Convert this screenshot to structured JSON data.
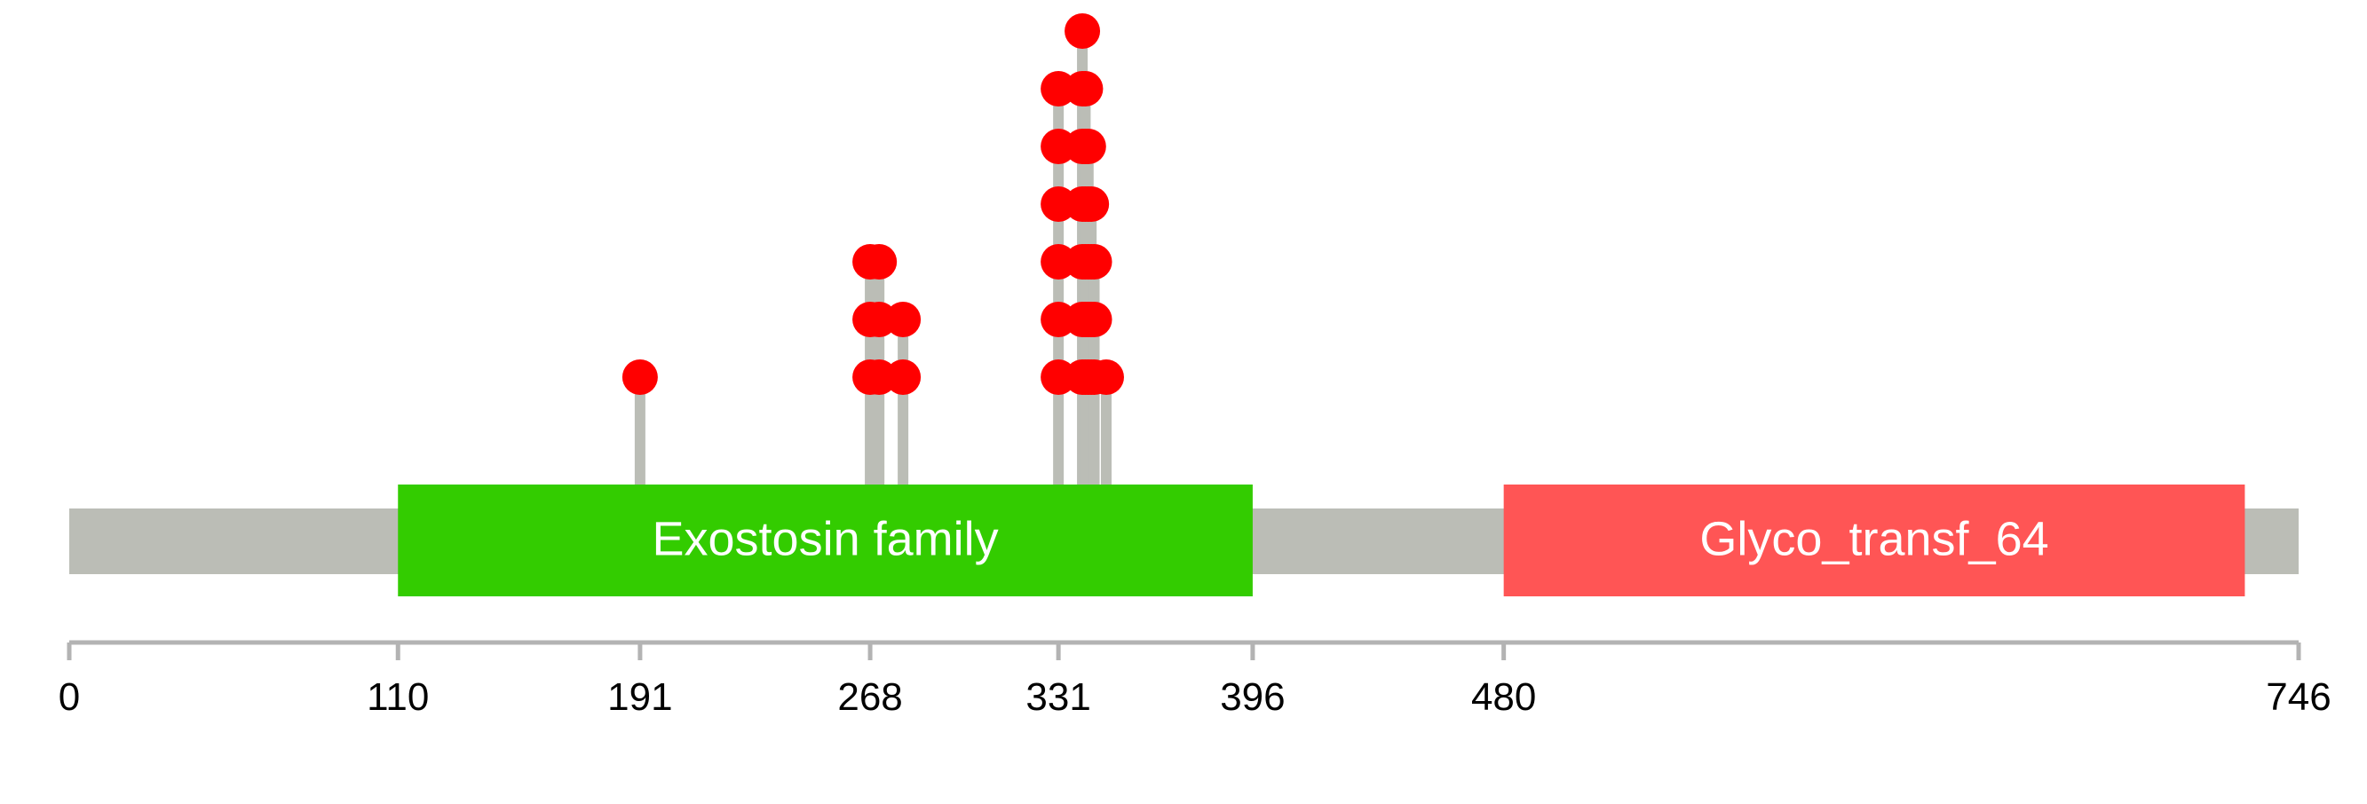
{
  "protein_length": 746,
  "colors": {
    "backbone": "#bbbdb6",
    "stem": "#bbbdb6",
    "mutation": "#ff0000",
    "axis": "#b3b3b3"
  },
  "domains": [
    {
      "name": "Exostosin family",
      "start": 110,
      "end": 396,
      "color": "#33cc00"
    },
    {
      "name": "Glyco_transf_64",
      "start": 480,
      "end": 728,
      "color": "#ff5555"
    }
  ],
  "ticks": [
    {
      "value": 0,
      "label": "0"
    },
    {
      "value": 110,
      "label": "110"
    },
    {
      "value": 191,
      "label": "191"
    },
    {
      "value": 268,
      "label": "268"
    },
    {
      "value": 331,
      "label": "331"
    },
    {
      "value": 396,
      "label": "396"
    },
    {
      "value": 480,
      "label": "480"
    },
    {
      "value": 746,
      "label": "746"
    }
  ],
  "mutations": [
    {
      "position": 191,
      "count": 1
    },
    {
      "position": 268,
      "count": 3
    },
    {
      "position": 271,
      "count": 3
    },
    {
      "position": 279,
      "count": 2
    },
    {
      "position": 331,
      "count": 6
    },
    {
      "position": 339,
      "count": 7
    },
    {
      "position": 340,
      "count": 6
    },
    {
      "position": 341,
      "count": 5
    },
    {
      "position": 342,
      "count": 4
    },
    {
      "position": 343,
      "count": 3
    },
    {
      "position": 347,
      "count": 1
    }
  ]
}
